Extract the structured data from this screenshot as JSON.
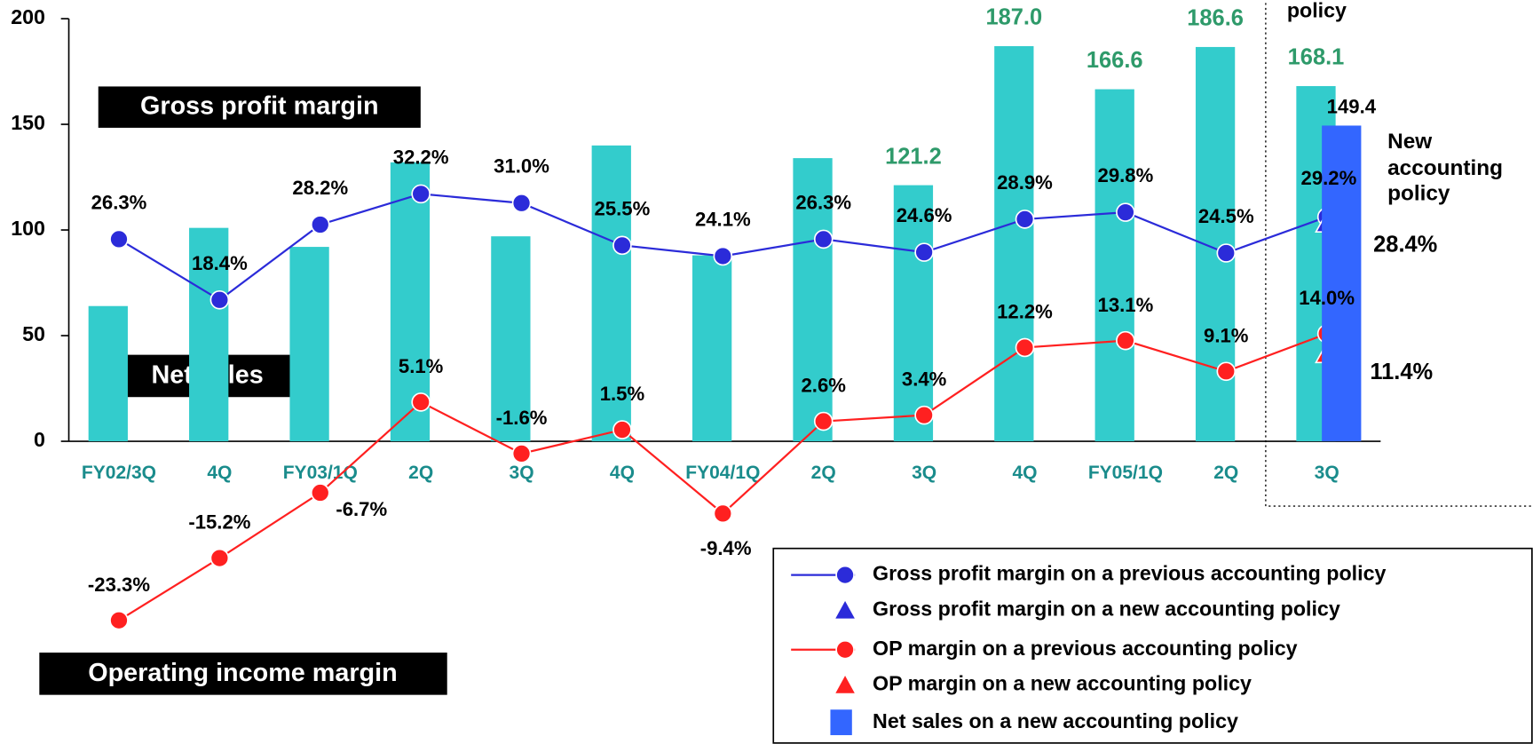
{
  "chart_data": {
    "type": "bar",
    "categories": [
      "FY02/3Q",
      "4Q",
      "FY03/1Q",
      "2Q",
      "3Q",
      "4Q",
      "FY04/1Q",
      "2Q",
      "3Q",
      "4Q",
      "FY05/1Q",
      "2Q",
      "3Q"
    ],
    "ylim": [
      0,
      200
    ],
    "yticks": [
      0,
      50,
      100,
      150,
      200
    ],
    "y2lim": [
      0,
      55
    ],
    "grid": false,
    "series": [
      {
        "type": "bar",
        "color": "#33cccc",
        "values": [
          64,
          101,
          92,
          132,
          97,
          140,
          88,
          134,
          121.2,
          187.0,
          166.6,
          186.6,
          168.1
        ],
        "value_labels": [
          null,
          null,
          null,
          null,
          null,
          null,
          null,
          null,
          "121.2",
          "187.0",
          "166.6",
          "186.6",
          "168.1"
        ]
      },
      {
        "type": "line",
        "name": "Gross profit margin on a previous accounting policy",
        "color": "#2b2bd9",
        "marker": "circle",
        "axis": "y2",
        "values": [
          26.3,
          18.4,
          28.2,
          32.2,
          31.0,
          25.5,
          24.1,
          26.3,
          24.6,
          28.9,
          29.8,
          24.5,
          29.2
        ],
        "value_labels": [
          "26.3%",
          "18.4%",
          "28.2%",
          "32.2%",
          "31.0%",
          "25.5%",
          "24.1%",
          "26.3%",
          "24.6%",
          "28.9%",
          "29.8%",
          "24.5%",
          "29.2%"
        ]
      },
      {
        "type": "scatter",
        "name": "Gross profit margin on a new accounting policy",
        "color": "#2b2bd9",
        "marker": "triangle",
        "axis": "y2",
        "values": [
          null,
          null,
          null,
          null,
          null,
          null,
          null,
          null,
          null,
          null,
          null,
          null,
          28.4
        ],
        "value_labels": [
          null,
          null,
          null,
          null,
          null,
          null,
          null,
          null,
          null,
          null,
          null,
          null,
          "28.4%"
        ]
      },
      {
        "type": "line",
        "name": "OP margin on a previous accounting policy",
        "color": "#ff2020",
        "marker": "circle",
        "axis": "y2",
        "values": [
          -23.3,
          -15.2,
          -6.7,
          5.1,
          -1.6,
          1.5,
          -9.4,
          2.6,
          3.4,
          12.2,
          13.1,
          9.1,
          14.0
        ],
        "value_labels": [
          "-23.3%",
          "-15.2%",
          "-6.7%",
          "5.1%",
          "-1.6%",
          "1.5%",
          "-9.4%",
          "2.6%",
          "3.4%",
          "12.2%",
          "13.1%",
          "9.1%",
          "14.0%"
        ]
      },
      {
        "type": "scatter",
        "name": "OP margin on a new accounting policy",
        "color": "#ff2020",
        "marker": "triangle",
        "axis": "y2",
        "values": [
          null,
          null,
          null,
          null,
          null,
          null,
          null,
          null,
          null,
          null,
          null,
          null,
          11.4
        ],
        "value_labels": [
          null,
          null,
          null,
          null,
          null,
          null,
          null,
          null,
          null,
          null,
          null,
          null,
          "11.4%"
        ]
      },
      {
        "type": "bar",
        "name": "Net sales on a new accounting policy",
        "color": "#3366ff",
        "marker": "square",
        "values": [
          null,
          null,
          null,
          null,
          null,
          null,
          null,
          null,
          null,
          null,
          null,
          null,
          149.4
        ],
        "value_labels": [
          null,
          null,
          null,
          null,
          null,
          null,
          null,
          null,
          null,
          null,
          null,
          null,
          "149.4"
        ]
      }
    ],
    "annotations": {
      "gross": "Gross profit margin",
      "net_sales": "Net sales",
      "operating": "Operating income margin",
      "new_policy": [
        "New",
        "accounting",
        "policy"
      ],
      "top": "policy"
    }
  }
}
